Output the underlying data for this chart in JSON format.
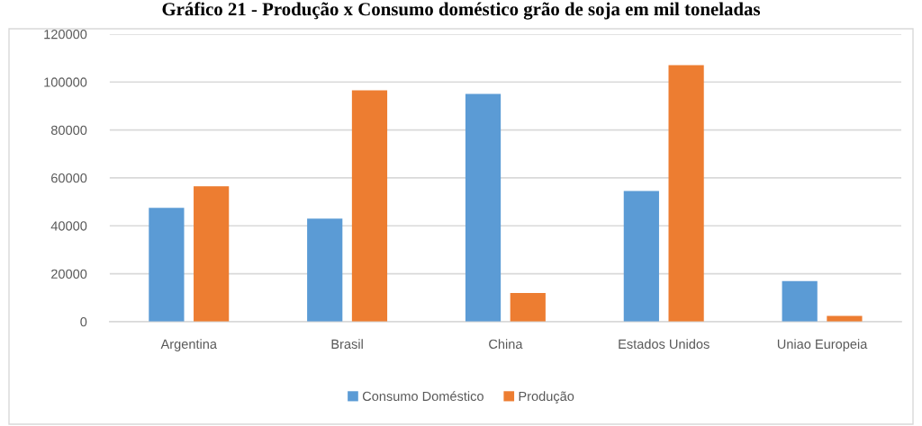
{
  "chart_data": {
    "type": "bar",
    "title": "Gráfico 21 - Produção x Consumo doméstico grão de soja em mil toneladas",
    "categories": [
      "Argentina",
      "Brasil",
      "China",
      "Estados Unidos",
      "Uniao Europeia"
    ],
    "series": [
      {
        "name": "Consumo Doméstico",
        "color": "#5b9bd5",
        "values": [
          47500,
          43000,
          95000,
          54500,
          16900
        ]
      },
      {
        "name": "Produção",
        "color": "#ed7d31",
        "values": [
          56500,
          96500,
          12000,
          107000,
          2400
        ]
      }
    ],
    "ylim": [
      0,
      120000
    ],
    "yticks": [
      0,
      20000,
      40000,
      60000,
      80000,
      100000,
      120000
    ],
    "grid": "y",
    "legend": "bottom"
  }
}
